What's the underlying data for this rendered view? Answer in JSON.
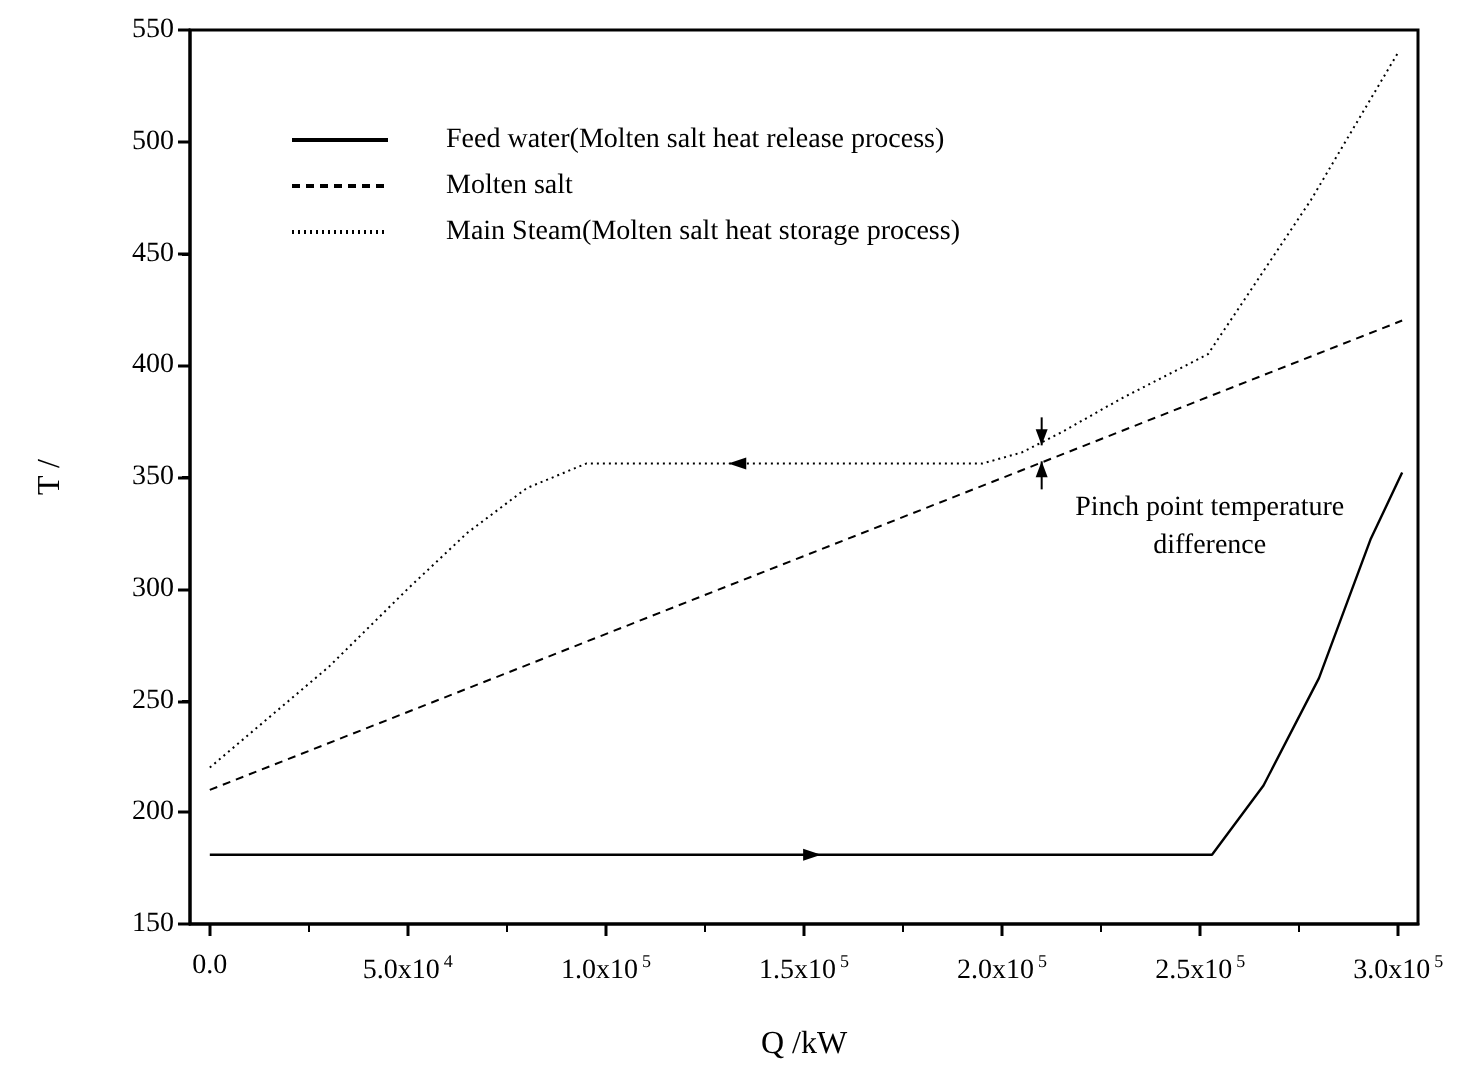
{
  "chart_data": {
    "type": "line",
    "xlabel": "Q /kW",
    "ylabel": "T /",
    "xlim": [
      -5000,
      305000
    ],
    "xticks": [
      {
        "value": 0,
        "label": "0.0"
      },
      {
        "value": 50000,
        "label": "5.0x10$^{4}$"
      },
      {
        "value": 100000,
        "label": "1.0x10$^{5}$"
      },
      {
        "value": 150000,
        "label": "1.5x10$^{5}$"
      },
      {
        "value": 200000,
        "label": "2.0x10$^{5}$"
      },
      {
        "value": 250000,
        "label": "2.5x10$^{5}$"
      },
      {
        "value": 300000,
        "label": "3.0x10$^{5}$"
      }
    ],
    "ylim": [
      150,
      550
    ],
    "yticks": [
      150,
      200,
      250,
      300,
      350,
      400,
      450,
      500,
      550
    ],
    "legend": "top left",
    "grid": false,
    "marker": "none",
    "series": [
      {
        "name": "Feed water(Molten salt heat release process)",
        "color": "#000000",
        "line_style": "solid",
        "x": [
          0,
          253000,
          266000,
          280000,
          293000,
          301000
        ],
        "values": [
          181,
          181,
          212,
          260,
          322,
          352
        ]
      },
      {
        "name": "Molten salt",
        "color": "#000000",
        "line_style": "dashed",
        "x": [
          0,
          301000
        ],
        "values": [
          210,
          420
        ]
      },
      {
        "name": "Main Steam(Molten salt heat storage process)",
        "color": "#000000",
        "line_style": "dotted",
        "x": [
          0,
          30000,
          50000,
          65000,
          80000,
          95000,
          195000,
          205000,
          215000,
          230000,
          252000,
          278000,
          300000
        ],
        "values": [
          220,
          265,
          300,
          325,
          345,
          356,
          356,
          361,
          370,
          385,
          405,
          474,
          540
        ]
      }
    ],
    "annotations": [
      {
        "text": "Pinch point temperature\ndifference",
        "x": 210000,
        "y": 357
      }
    ]
  }
}
